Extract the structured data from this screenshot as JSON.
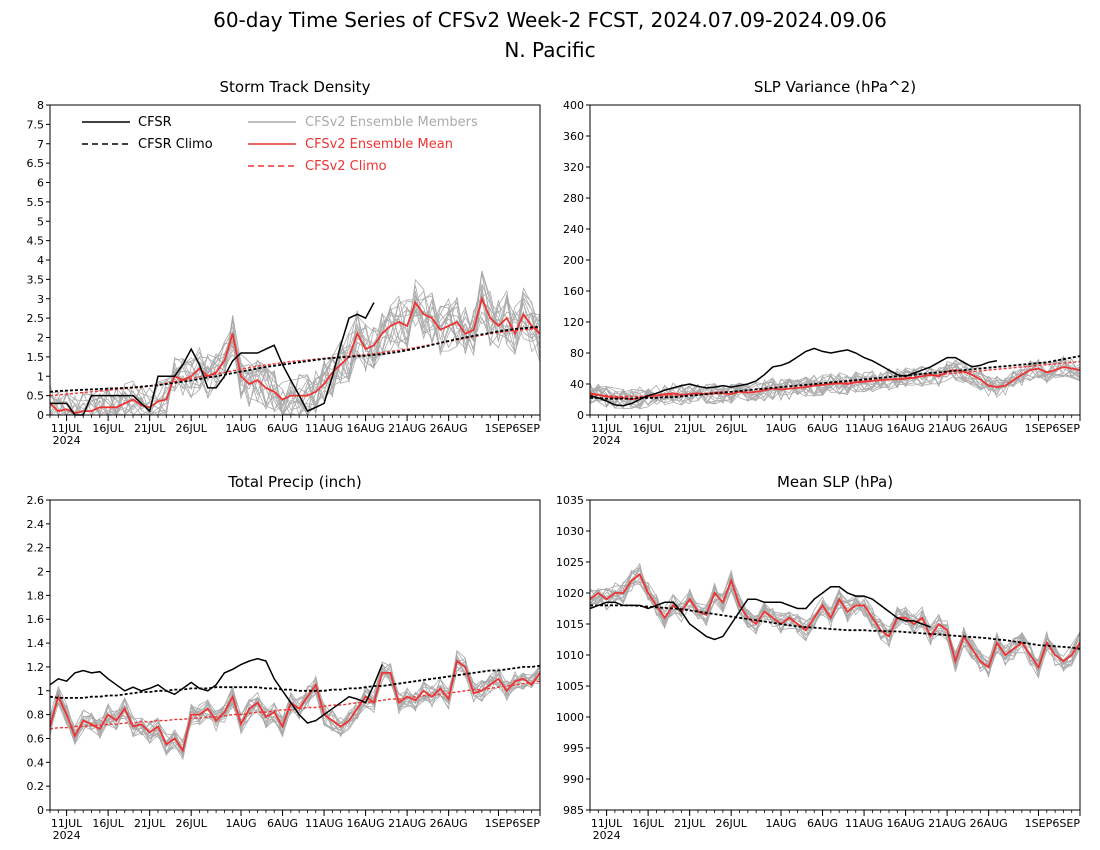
{
  "figure": {
    "title": "60-day Time Series of CFSv2 Week-2 FCST, 2024.07.09-2024.09.06",
    "subtitle": "N. Pacific",
    "legend": [
      {
        "label": "CFSR",
        "color": "#000000",
        "dashed": false
      },
      {
        "label": "CFSR Climo",
        "color": "#000000",
        "dashed": true
      },
      {
        "label": "CFSv2 Ensemble Members",
        "color": "#aaaaaa",
        "dashed": false
      },
      {
        "label": "CFSv2 Ensemble Mean",
        "color": "#ee3333",
        "dashed": false
      },
      {
        "label": "CFSv2 Climo",
        "color": "#ee3333",
        "dashed": true
      }
    ],
    "colors": {
      "cfsr": "#000000",
      "members": "#aaaaaa",
      "mean": "#ee3333",
      "axis": "#000000"
    }
  },
  "chart_data": [
    {
      "type": "line",
      "title": "Storm Track Density",
      "position": "top-left",
      "legend_location": "top-left",
      "xlim": [
        0,
        59
      ],
      "ylim": [
        0,
        8
      ],
      "x_ticks": [
        2,
        7,
        12,
        17,
        23,
        28,
        33,
        38,
        43,
        48,
        54,
        59
      ],
      "x_tick_labels": [
        "11JUL",
        "16JUL",
        "21JUL",
        "26JUL",
        "1AUG",
        "6AUG",
        "11AUG",
        "16AUG",
        "21AUG",
        "26AUG",
        "1SEP",
        "6SEP"
      ],
      "x_year_label": "2024",
      "y_ticks": [
        0,
        0.5,
        1,
        1.5,
        2,
        2.5,
        3,
        3.5,
        4,
        4.5,
        5,
        5.5,
        6,
        6.5,
        7,
        7.5,
        8
      ],
      "y_tick_labels": [
        "0",
        "0.5",
        "1",
        "1.5",
        "2",
        "2.5",
        "3",
        "3.5",
        "4",
        "4.5",
        "5",
        "5.5",
        "6",
        "6.5",
        "7",
        "7.5",
        "8"
      ],
      "cfsr": [
        0.3,
        0.3,
        0.3,
        0.0,
        0.0,
        0.5,
        0.5,
        0.5,
        0.5,
        0.5,
        0.5,
        0.3,
        0.1,
        1.0,
        1.0,
        1.0,
        1.3,
        1.7,
        1.3,
        0.7,
        0.7,
        1.0,
        1.4,
        1.6,
        1.6,
        1.6,
        1.7,
        1.8,
        1.3,
        0.9,
        0.5,
        0.1,
        0.2,
        0.3,
        1.0,
        1.8,
        2.5,
        2.6,
        2.5,
        2.9
      ],
      "cfsr_climo": [
        0.6,
        0.62,
        0.63,
        0.64,
        0.65,
        0.66,
        0.67,
        0.68,
        0.69,
        0.7,
        0.71,
        0.73,
        0.75,
        0.77,
        0.8,
        0.83,
        0.86,
        0.89,
        0.93,
        0.97,
        1.0,
        1.04,
        1.08,
        1.12,
        1.16,
        1.2,
        1.24,
        1.27,
        1.3,
        1.33,
        1.36,
        1.39,
        1.42,
        1.45,
        1.47,
        1.49,
        1.5,
        1.52,
        1.53,
        1.55,
        1.57,
        1.6,
        1.63,
        1.67,
        1.71,
        1.76,
        1.81,
        1.86,
        1.91,
        1.96,
        2.0,
        2.04,
        2.08,
        2.12,
        2.16,
        2.19,
        2.22,
        2.24,
        2.26,
        2.28
      ],
      "mean": [
        0.3,
        0.1,
        0.15,
        0.05,
        0.1,
        0.1,
        0.2,
        0.2,
        0.2,
        0.3,
        0.4,
        0.25,
        0.2,
        0.35,
        0.4,
        1.0,
        0.9,
        1.0,
        1.2,
        1.0,
        1.1,
        1.4,
        2.1,
        1.0,
        0.8,
        0.9,
        0.7,
        0.6,
        0.4,
        0.5,
        0.5,
        0.5,
        0.6,
        0.8,
        1.1,
        1.3,
        1.5,
        2.1,
        1.7,
        1.8,
        2.1,
        2.3,
        2.4,
        2.3,
        2.9,
        2.6,
        2.5,
        2.2,
        2.3,
        2.4,
        2.1,
        2.2,
        3.0,
        2.5,
        2.3,
        2.5,
        2.1,
        2.6,
        2.3,
        2.1
      ],
      "climo_mean": [
        0.5,
        0.52,
        0.54,
        0.56,
        0.58,
        0.6,
        0.62,
        0.64,
        0.66,
        0.68,
        0.7,
        0.72,
        0.75,
        0.78,
        0.82,
        0.86,
        0.9,
        0.94,
        0.98,
        1.02,
        1.06,
        1.1,
        1.14,
        1.18,
        1.22,
        1.26,
        1.29,
        1.32,
        1.35,
        1.38,
        1.4,
        1.42,
        1.44,
        1.46,
        1.48,
        1.5,
        1.52,
        1.54,
        1.56,
        1.58,
        1.61,
        1.64,
        1.67,
        1.7,
        1.74,
        1.78,
        1.82,
        1.86,
        1.9,
        1.94,
        1.98,
        2.02,
        2.06,
        2.1,
        2.13,
        2.16,
        2.18,
        2.2,
        2.22,
        2.24
      ]
    },
    {
      "type": "line",
      "title": "SLP Variance (hPa^2)",
      "position": "top-right",
      "xlim": [
        0,
        59
      ],
      "ylim": [
        0,
        400
      ],
      "x_ticks": [
        2,
        7,
        12,
        17,
        23,
        28,
        33,
        38,
        43,
        48,
        54,
        59
      ],
      "x_tick_labels": [
        "11JUL",
        "16JUL",
        "21JUL",
        "26JUL",
        "1AUG",
        "6AUG",
        "11AUG",
        "16AUG",
        "21AUG",
        "26AUG",
        "1SEP",
        "6SEP"
      ],
      "x_year_label": "2024",
      "y_ticks": [
        0,
        40,
        80,
        120,
        160,
        200,
        240,
        280,
        320,
        360,
        400
      ],
      "y_tick_labels": [
        "0",
        "40",
        "80",
        "120",
        "160",
        "200",
        "240",
        "280",
        "320",
        "360",
        "400"
      ],
      "cfsr": [
        25,
        22,
        18,
        13,
        12,
        15,
        20,
        25,
        28,
        32,
        35,
        38,
        40,
        37,
        35,
        36,
        38,
        36,
        38,
        40,
        44,
        52,
        62,
        64,
        68,
        75,
        82,
        86,
        82,
        80,
        82,
        84,
        80,
        74,
        70,
        64,
        58,
        52,
        50,
        54,
        58,
        62,
        68,
        74,
        74,
        68,
        62,
        64,
        68,
        70
      ],
      "cfsr_climo": [
        22,
        22,
        21,
        21,
        21,
        21,
        22,
        22,
        22,
        23,
        23,
        24,
        25,
        26,
        27,
        28,
        29,
        30,
        31,
        32,
        33,
        34,
        35,
        36,
        37,
        38,
        39,
        40,
        41,
        42,
        43,
        44,
        45,
        46,
        47,
        48,
        49,
        50,
        51,
        52,
        53,
        54,
        55,
        56,
        57,
        58,
        59,
        60,
        61,
        62,
        63,
        64,
        65,
        66,
        67,
        68,
        70,
        72,
        74,
        76
      ],
      "mean": [
        28,
        26,
        24,
        22,
        22,
        20,
        22,
        24,
        25,
        27,
        28,
        26,
        27,
        28,
        27,
        28,
        28,
        27,
        30,
        29,
        30,
        32,
        34,
        33,
        34,
        35,
        36,
        38,
        39,
        40,
        41,
        40,
        42,
        43,
        44,
        45,
        46,
        46,
        47,
        48,
        50,
        52,
        50,
        56,
        58,
        56,
        52,
        46,
        38,
        36,
        38,
        45,
        52,
        58,
        60,
        55,
        58,
        62,
        60,
        58
      ],
      "climo_mean": [
        26,
        25,
        25,
        24,
        24,
        24,
        24,
        25,
        25,
        25,
        26,
        26,
        27,
        27,
        28,
        29,
        30,
        30,
        31,
        32,
        33,
        34,
        35,
        36,
        37,
        38,
        38,
        39,
        40,
        41,
        42,
        42,
        43,
        44,
        45,
        45,
        46,
        47,
        48,
        49,
        50,
        51,
        52,
        53,
        54,
        55,
        56,
        57,
        58,
        59,
        60,
        61,
        62,
        63,
        64,
        65,
        66,
        67,
        68,
        69
      ]
    },
    {
      "type": "line",
      "title": "Total Precip (inch)",
      "position": "bottom-left",
      "xlim": [
        0,
        59
      ],
      "ylim": [
        0,
        2.6
      ],
      "x_ticks": [
        2,
        7,
        12,
        17,
        23,
        28,
        33,
        38,
        43,
        48,
        54,
        59
      ],
      "x_tick_labels": [
        "11JUL",
        "16JUL",
        "21JUL",
        "26JUL",
        "1AUG",
        "6AUG",
        "11AUG",
        "16AUG",
        "21AUG",
        "26AUG",
        "1SEP",
        "6SEP"
      ],
      "x_year_label": "2024",
      "y_ticks": [
        0,
        0.2,
        0.4,
        0.6,
        0.8,
        1,
        1.2,
        1.4,
        1.6,
        1.8,
        2,
        2.2,
        2.4,
        2.6
      ],
      "y_tick_labels": [
        "0",
        "0.2",
        "0.4",
        "0.6",
        "0.8",
        "1",
        "1.2",
        "1.4",
        "1.6",
        "1.8",
        "2",
        "2.2",
        "2.4",
        "2.6"
      ],
      "cfsr": [
        1.05,
        1.1,
        1.08,
        1.15,
        1.17,
        1.15,
        1.16,
        1.1,
        1.05,
        1.0,
        1.03,
        1.0,
        1.02,
        1.05,
        1.0,
        0.97,
        1.02,
        1.07,
        1.02,
        1.0,
        1.05,
        1.15,
        1.18,
        1.22,
        1.25,
        1.27,
        1.25,
        1.1,
        1.0,
        0.9,
        0.8,
        0.73,
        0.75,
        0.8,
        0.85,
        0.9,
        0.95,
        0.93,
        0.9,
        1.05,
        1.22
      ],
      "cfsr_climo": [
        0.95,
        0.94,
        0.94,
        0.94,
        0.94,
        0.95,
        0.95,
        0.96,
        0.96,
        0.97,
        0.98,
        0.99,
        0.99,
        1.0,
        1.0,
        1.01,
        1.01,
        1.02,
        1.02,
        1.02,
        1.03,
        1.03,
        1.03,
        1.03,
        1.03,
        1.03,
        1.02,
        1.02,
        1.01,
        1.01,
        1.0,
        1.0,
        1.0,
        1.0,
        1.01,
        1.01,
        1.02,
        1.02,
        1.03,
        1.04,
        1.04,
        1.05,
        1.06,
        1.07,
        1.08,
        1.09,
        1.1,
        1.11,
        1.12,
        1.13,
        1.14,
        1.15,
        1.16,
        1.17,
        1.17,
        1.18,
        1.19,
        1.2,
        1.2,
        1.21
      ],
      "mean": [
        0.7,
        0.95,
        0.8,
        0.62,
        0.75,
        0.72,
        0.68,
        0.8,
        0.75,
        0.85,
        0.7,
        0.72,
        0.65,
        0.7,
        0.55,
        0.6,
        0.5,
        0.8,
        0.8,
        0.85,
        0.75,
        0.82,
        0.95,
        0.72,
        0.85,
        0.9,
        0.78,
        0.82,
        0.7,
        0.9,
        0.85,
        0.95,
        1.05,
        0.8,
        0.75,
        0.7,
        0.75,
        0.85,
        0.95,
        0.9,
        1.15,
        1.15,
        0.9,
        0.95,
        0.92,
        1.0,
        0.95,
        1.02,
        0.93,
        1.25,
        1.2,
        0.98,
        1.0,
        1.05,
        1.1,
        1.0,
        1.08,
        1.1,
        1.05,
        1.15
      ],
      "climo_mean": [
        0.68,
        0.69,
        0.69,
        0.7,
        0.7,
        0.71,
        0.71,
        0.72,
        0.72,
        0.73,
        0.73,
        0.74,
        0.74,
        0.75,
        0.75,
        0.76,
        0.76,
        0.77,
        0.77,
        0.78,
        0.78,
        0.79,
        0.8,
        0.8,
        0.81,
        0.82,
        0.82,
        0.83,
        0.84,
        0.84,
        0.85,
        0.86,
        0.86,
        0.87,
        0.88,
        0.88,
        0.89,
        0.9,
        0.9,
        0.91,
        0.92,
        0.93,
        0.93,
        0.94,
        0.95,
        0.96,
        0.96,
        0.97,
        0.98,
        0.99,
        1.0,
        1.01,
        1.01,
        1.02,
        1.03,
        1.04,
        1.05,
        1.06,
        1.07,
        1.08
      ]
    },
    {
      "type": "line",
      "title": "Mean SLP (hPa)",
      "position": "bottom-right",
      "xlim": [
        0,
        59
      ],
      "ylim": [
        985,
        1035
      ],
      "x_ticks": [
        2,
        7,
        12,
        17,
        23,
        28,
        33,
        38,
        43,
        48,
        54,
        59
      ],
      "x_tick_labels": [
        "11JUL",
        "16JUL",
        "21JUL",
        "26JUL",
        "1AUG",
        "6AUG",
        "11AUG",
        "16AUG",
        "21AUG",
        "26AUG",
        "1SEP",
        "6SEP"
      ],
      "x_year_label": "2024",
      "y_ticks": [
        985,
        990,
        995,
        1000,
        1005,
        1010,
        1015,
        1020,
        1025,
        1030,
        1035
      ],
      "y_tick_labels": [
        "985",
        "990",
        "995",
        "1000",
        "1005",
        "1010",
        "1015",
        "1020",
        "1025",
        "1030",
        "1035"
      ],
      "cfsr": [
        1017.5,
        1018,
        1018.5,
        1018.5,
        1018,
        1018,
        1018,
        1017.5,
        1018,
        1018.5,
        1018.5,
        1017,
        1015,
        1014,
        1013,
        1012.5,
        1013,
        1015,
        1017,
        1019,
        1019,
        1018.5,
        1018.5,
        1018.5,
        1018,
        1017.5,
        1017.5,
        1019,
        1020,
        1021,
        1021,
        1020,
        1019.5,
        1019.5,
        1019,
        1018,
        1017,
        1016,
        1015.5,
        1015.5,
        1015,
        1014.5
      ],
      "cfsr_climo": [
        1018,
        1018,
        1018,
        1018,
        1018,
        1018,
        1017.9,
        1017.8,
        1017.7,
        1017.6,
        1017.5,
        1017.4,
        1017.2,
        1017,
        1016.8,
        1016.6,
        1016.4,
        1016.2,
        1016,
        1015.8,
        1015.6,
        1015.4,
        1015.2,
        1015,
        1014.8,
        1014.6,
        1014.5,
        1014.4,
        1014.3,
        1014.2,
        1014.1,
        1014,
        1014,
        1014,
        1013.9,
        1013.9,
        1013.8,
        1013.8,
        1013.7,
        1013.6,
        1013.5,
        1013.4,
        1013.3,
        1013.2,
        1013.1,
        1013,
        1012.9,
        1012.8,
        1012.7,
        1012.5,
        1012.4,
        1012.2,
        1012,
        1011.8,
        1011.6,
        1011.5,
        1011.4,
        1011.3,
        1011.2,
        1011
      ],
      "mean": [
        1019,
        1020,
        1019,
        1020,
        1020,
        1022,
        1023,
        1020,
        1018,
        1016,
        1018,
        1017,
        1019,
        1017,
        1016.5,
        1020,
        1018.5,
        1022,
        1018,
        1016,
        1015,
        1017,
        1016,
        1015,
        1016,
        1015,
        1014,
        1016,
        1018,
        1016,
        1019,
        1017,
        1018,
        1018,
        1016,
        1014,
        1013,
        1016,
        1016,
        1015,
        1016,
        1013,
        1015,
        1014,
        1009,
        1013,
        1011,
        1009,
        1008,
        1012,
        1010,
        1011,
        1012,
        1010,
        1008,
        1012,
        1010,
        1009,
        1010,
        1012
      ]
    }
  ]
}
